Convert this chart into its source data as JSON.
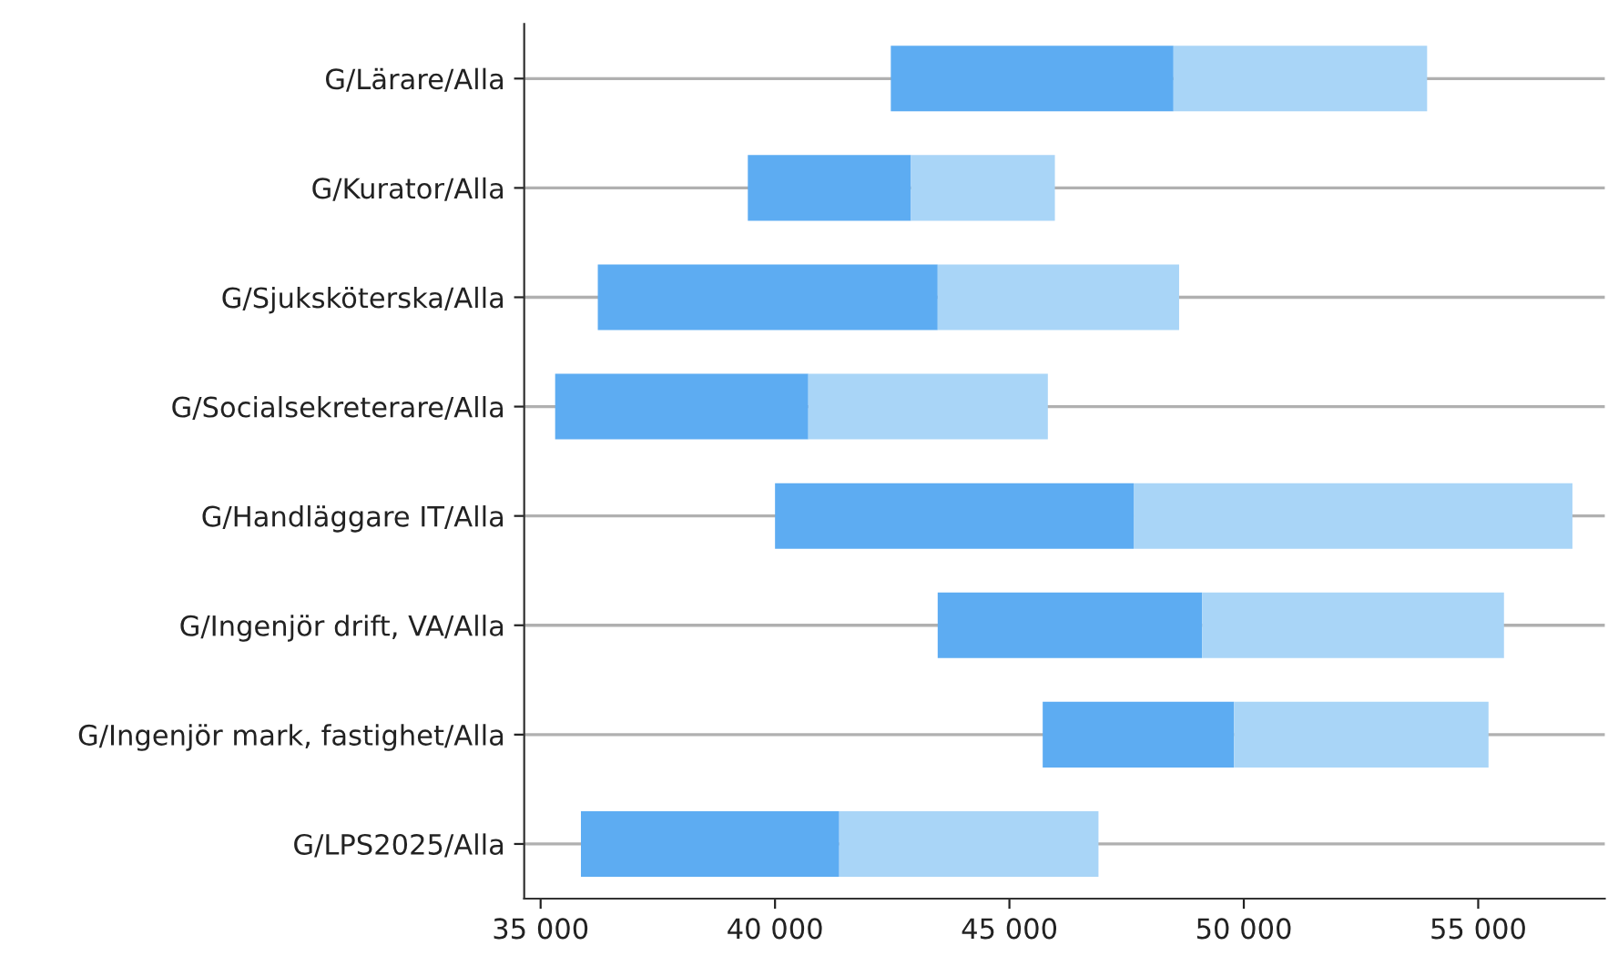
{
  "chart_data": {
    "type": "bar",
    "orientation": "horizontal",
    "categories": [
      "G/Lärare/Alla",
      "G/Kurator/Alla",
      "G/Sjuksköterska/Alla",
      "G/Socialsekreterare/Alla",
      "G/Handläggare IT/Alla",
      "G/Ingenjör drift, VA/Alla",
      "G/Ingenjör mark, fastighet/Alla",
      "G/LPS2025/Alla"
    ],
    "series": [
      {
        "color": "#5dacf2",
        "base": [
          42470,
          39420,
          36220,
          35310,
          40000,
          43470,
          45710,
          35860
        ],
        "values": [
          6030,
          3480,
          7250,
          5400,
          7650,
          5640,
          4080,
          5510
        ]
      },
      {
        "color": "#a9d5f7",
        "base": [
          48500,
          42900,
          43470,
          40710,
          47650,
          49110,
          49790,
          41370
        ],
        "values": [
          5410,
          3070,
          5150,
          5110,
          9360,
          6440,
          5430,
          5530
        ]
      }
    ],
    "xlim": [
      34650,
      57700
    ],
    "xticks": [
      {
        "value": 35000,
        "label": "35 000"
      },
      {
        "value": 40000,
        "label": "40 000"
      },
      {
        "value": 45000,
        "label": "45 000"
      },
      {
        "value": 50000,
        "label": "50 000"
      },
      {
        "value": 55000,
        "label": "55 000"
      }
    ],
    "grid": "y",
    "legend": false
  }
}
